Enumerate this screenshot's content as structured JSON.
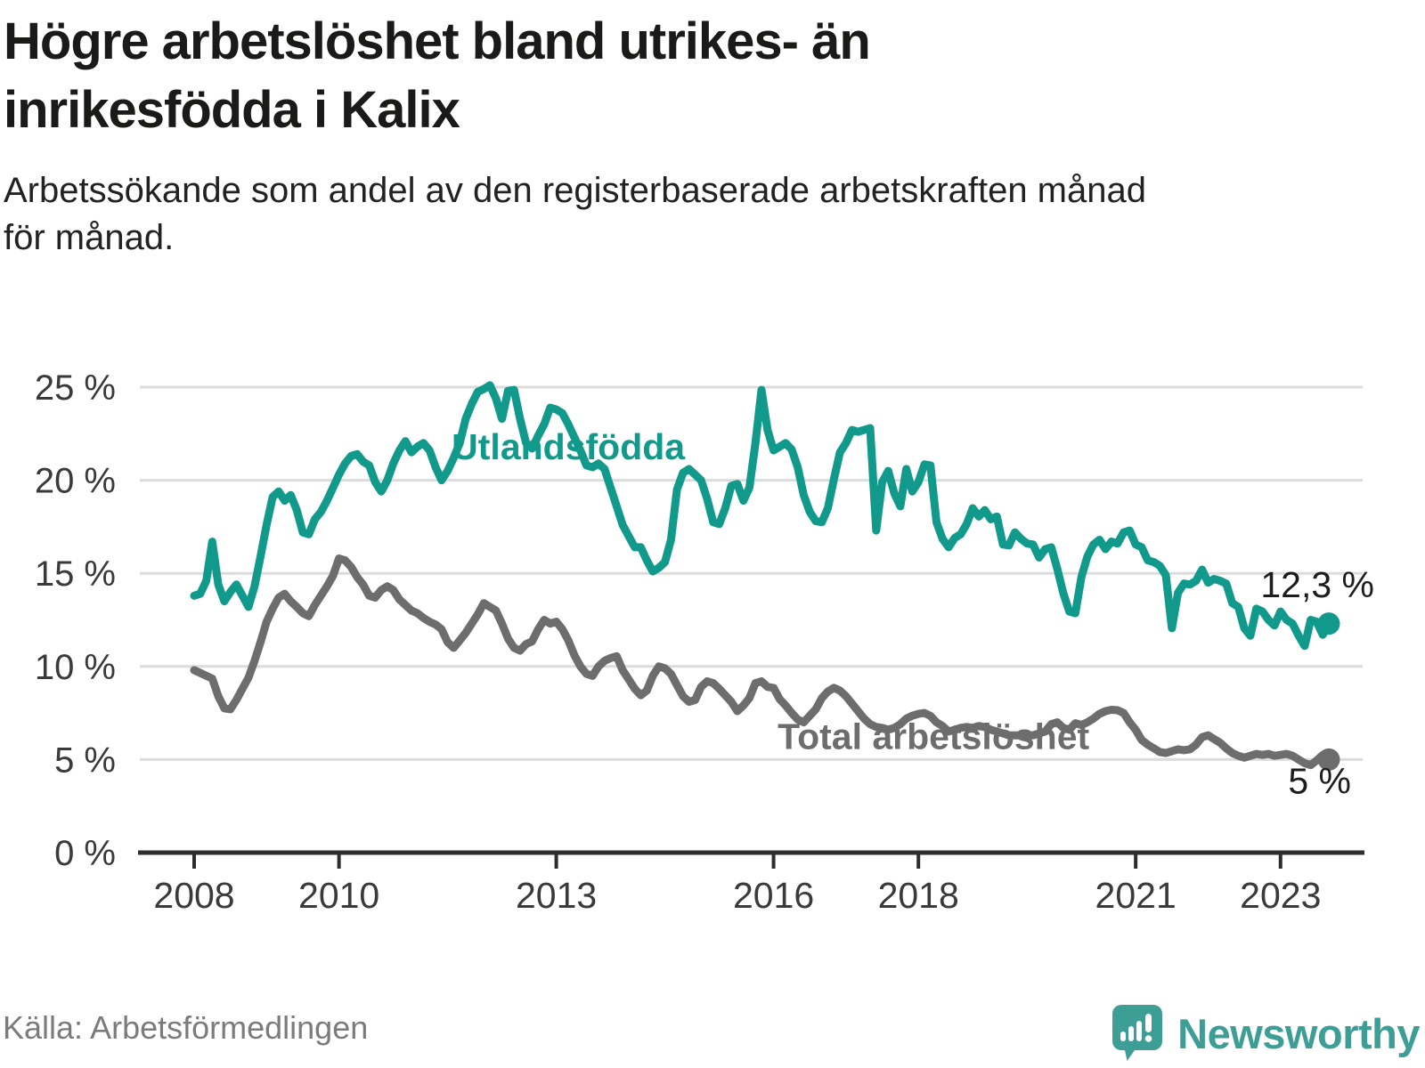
{
  "header": {
    "title_lines": [
      "Högre arbetslöshet bland utrikes- än",
      "inrikesfödda i Kalix"
    ],
    "subtitle_lines": [
      "Arbetssökande som andel av den registerbaserade arbetskraften månad",
      "för månad."
    ]
  },
  "footer": {
    "source": "Källa: Arbetsförmedlingen",
    "logo_text": "Newsworthy"
  },
  "colors": {
    "teal_series": "#119a8c",
    "gray_series": "#6d6d6d",
    "annotation": "#1d1d1d",
    "axis": "#2d2d2d",
    "gridline": "#dcdcdc",
    "tick_label": "#3a3a3a",
    "logo_teal": "#3d9e96"
  },
  "chart_data": {
    "type": "line",
    "unit": "%",
    "frequency": "monthly",
    "x_start": "2008-01",
    "x_end": "2023-09",
    "x_start_year": 2008,
    "ylim": [
      0,
      25
    ],
    "yticks": [
      0,
      5,
      10,
      15,
      20,
      25
    ],
    "ytick_suffix": " %",
    "xticks": [
      2008,
      2010,
      2013,
      2016,
      2018,
      2021,
      2023
    ],
    "grid": "horizontal",
    "legend_position": "inline-labels",
    "series": [
      {
        "name": "Utlandsfödda",
        "color": "#119a8c",
        "label_anchor": {
          "m": 62,
          "v": 21.8
        },
        "end_dot": true,
        "last_value_label": "12,3 %",
        "values": [
          13.8,
          13.9,
          14.6,
          16.7,
          14.4,
          13.5,
          14.0,
          14.4,
          13.8,
          13.2,
          14.3,
          15.9,
          17.6,
          19.1,
          19.4,
          18.9,
          19.2,
          18.4,
          17.2,
          17.1,
          17.9,
          18.3,
          18.9,
          19.6,
          20.3,
          20.9,
          21.3,
          21.4,
          21.0,
          20.8,
          19.9,
          19.4,
          20.0,
          20.9,
          21.6,
          22.1,
          21.5,
          21.8,
          22.0,
          21.6,
          20.7,
          20.0,
          20.5,
          21.2,
          22.0,
          23.3,
          24.1,
          24.75,
          24.9,
          25.1,
          24.4,
          23.3,
          24.8,
          24.85,
          23.3,
          22.0,
          21.7,
          22.4,
          23.0,
          23.9,
          23.8,
          23.6,
          23.0,
          22.3,
          21.6,
          20.8,
          20.7,
          20.9,
          20.6,
          19.6,
          18.6,
          17.6,
          17.0,
          16.4,
          16.4,
          15.7,
          15.1,
          15.3,
          15.6,
          16.8,
          19.5,
          20.4,
          20.6,
          20.3,
          20.0,
          19.0,
          17.75,
          17.65,
          18.5,
          19.7,
          19.8,
          18.9,
          19.6,
          22.0,
          24.85,
          22.7,
          21.6,
          21.8,
          22.0,
          21.65,
          20.7,
          19.2,
          18.3,
          17.8,
          17.75,
          18.5,
          20.05,
          21.5,
          22.0,
          22.7,
          22.6,
          22.7,
          22.8,
          17.3,
          19.9,
          20.5,
          19.3,
          18.6,
          20.6,
          19.4,
          19.9,
          20.85,
          20.8,
          17.75,
          16.85,
          16.4,
          16.9,
          17.1,
          17.65,
          18.5,
          18.05,
          18.4,
          17.9,
          18.05,
          16.55,
          16.5,
          17.2,
          16.85,
          16.6,
          16.55,
          15.85,
          16.3,
          16.4,
          15.25,
          13.95,
          12.95,
          12.86,
          14.8,
          15.9,
          16.55,
          16.8,
          16.3,
          16.7,
          16.6,
          17.2,
          17.3,
          16.55,
          16.4,
          15.7,
          15.6,
          15.4,
          14.9,
          12.05,
          13.95,
          14.45,
          14.4,
          14.6,
          15.2,
          14.5,
          14.7,
          14.6,
          14.45,
          13.4,
          13.2,
          12.05,
          11.65,
          13.1,
          12.95,
          12.5,
          12.2,
          12.95,
          12.5,
          12.3,
          11.65,
          11.1,
          12.5,
          12.4,
          11.7,
          12.3
        ]
      },
      {
        "name": "Total arbetslöshet",
        "color": "#6d6d6d",
        "label_anchor": {
          "m": 122.5,
          "v": 6.25
        },
        "end_dot": true,
        "last_value_label": "5 %",
        "values": [
          9.8,
          9.65,
          9.5,
          9.35,
          8.4,
          7.75,
          7.7,
          8.2,
          8.8,
          9.4,
          10.3,
          11.3,
          12.4,
          13.1,
          13.7,
          13.9,
          13.5,
          13.2,
          12.86,
          12.7,
          13.3,
          13.8,
          14.3,
          14.87,
          15.8,
          15.7,
          15.35,
          14.8,
          14.4,
          13.8,
          13.7,
          14.1,
          14.3,
          14.1,
          13.6,
          13.3,
          13.0,
          12.86,
          12.6,
          12.4,
          12.25,
          12.0,
          11.3,
          11.0,
          11.4,
          11.8,
          12.3,
          12.8,
          13.4,
          13.2,
          13.0,
          12.3,
          11.5,
          11.0,
          10.85,
          11.2,
          11.35,
          12.0,
          12.5,
          12.3,
          12.4,
          12.0,
          11.4,
          10.6,
          10.0,
          9.6,
          9.5,
          10.0,
          10.3,
          10.45,
          10.55,
          9.8,
          9.3,
          8.8,
          8.45,
          8.7,
          9.5,
          10.0,
          9.9,
          9.6,
          9.0,
          8.4,
          8.1,
          8.2,
          8.9,
          9.2,
          9.1,
          8.8,
          8.45,
          8.1,
          7.6,
          7.9,
          8.3,
          9.1,
          9.2,
          8.9,
          8.85,
          8.25,
          7.9,
          7.5,
          7.15,
          7.0,
          7.35,
          7.7,
          8.3,
          8.65,
          8.85,
          8.7,
          8.4,
          8.0,
          7.6,
          7.2,
          6.9,
          6.75,
          6.7,
          6.6,
          6.7,
          6.9,
          7.2,
          7.35,
          7.45,
          7.5,
          7.34,
          7.0,
          6.8,
          6.5,
          6.6,
          6.7,
          6.75,
          6.7,
          6.8,
          6.74,
          6.6,
          6.5,
          6.4,
          6.3,
          6.3,
          6.3,
          6.3,
          6.3,
          6.4,
          6.5,
          6.9,
          7.0,
          6.7,
          6.6,
          6.95,
          6.86,
          7.0,
          7.2,
          7.45,
          7.6,
          7.67,
          7.65,
          7.5,
          7.0,
          6.6,
          6.05,
          5.8,
          5.6,
          5.4,
          5.35,
          5.45,
          5.55,
          5.5,
          5.55,
          5.8,
          6.2,
          6.3,
          6.1,
          5.9,
          5.6,
          5.35,
          5.2,
          5.1,
          5.2,
          5.3,
          5.25,
          5.3,
          5.2,
          5.25,
          5.3,
          5.2,
          5.0,
          4.8,
          4.7,
          4.95,
          5.25,
          5.0
        ]
      }
    ],
    "annotations": [
      {
        "text": "12,3 %",
        "m": 188,
        "v": 14.4,
        "anchor": "end",
        "dx": 51
      },
      {
        "text": "5 %",
        "m": 188,
        "v": 3.85,
        "anchor": "end",
        "dx": 25
      }
    ]
  }
}
